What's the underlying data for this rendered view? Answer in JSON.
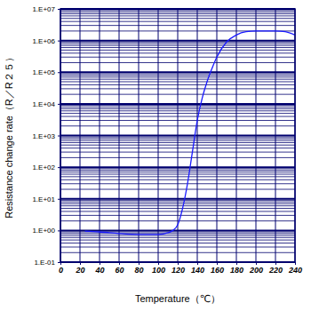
{
  "chart_data": {
    "type": "line",
    "x_label": "Temperature（℃）",
    "y_label": "Resistance change rate（R／R２５）",
    "x": [
      25,
      40,
      60,
      80,
      100,
      110,
      115,
      120,
      125,
      130,
      135,
      140,
      145,
      150,
      155,
      160,
      170,
      180,
      190,
      200,
      210,
      220,
      230,
      240
    ],
    "values": [
      0.95,
      0.9,
      0.8,
      0.75,
      0.75,
      0.85,
      1.0,
      1.5,
      5,
      30,
      300,
      3000,
      15000,
      50000,
      130000,
      300000,
      900000,
      1500000,
      1900000,
      2000000,
      2000000,
      2000000,
      1900000,
      1500000
    ],
    "color": "#1a1aff",
    "xlim": [
      0,
      240
    ],
    "xticks": [
      0,
      20,
      40,
      60,
      80,
      100,
      120,
      140,
      160,
      180,
      200,
      220,
      240
    ],
    "ylim": [
      0.1,
      10000000
    ],
    "yticks": [
      {
        "value": 0.1,
        "label": "1.E-01"
      },
      {
        "value": 1,
        "label": "1.E+00"
      },
      {
        "value": 10,
        "label": "1.E+01"
      },
      {
        "value": 100,
        "label": "1.E+02"
      },
      {
        "value": 1000,
        "label": "1.E+03"
      },
      {
        "value": 10000,
        "label": "1.E+04"
      },
      {
        "value": 100000,
        "label": "1.E+05"
      },
      {
        "value": 1000000,
        "label": "1.E+06"
      },
      {
        "value": 10000000,
        "label": "1.E+07"
      }
    ],
    "log": "y",
    "grid": true
  }
}
